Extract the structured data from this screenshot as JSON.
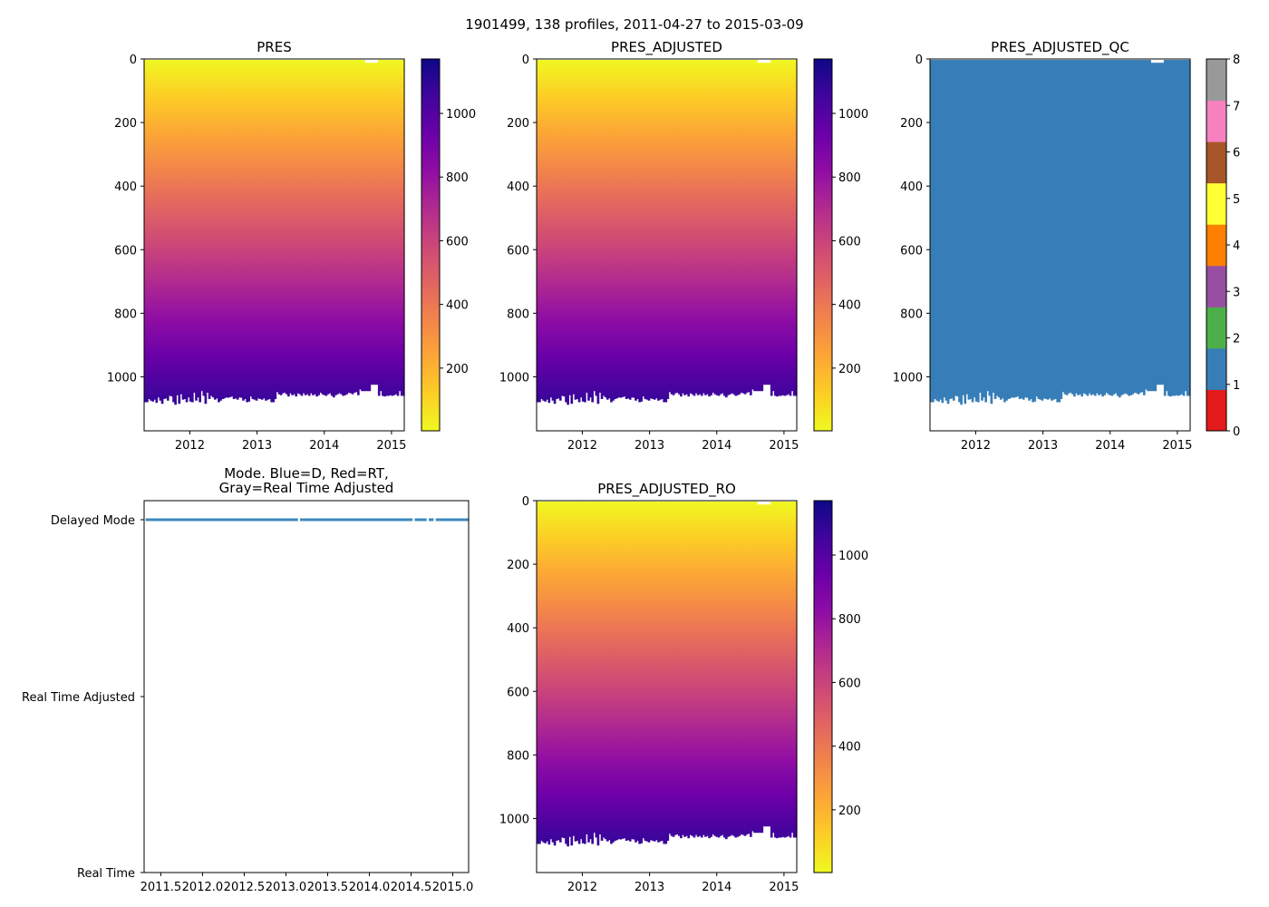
{
  "chart_data": {
    "type": "heatmap",
    "suptitle": "1901499, 138 profiles, 2011-04-27 to 2015-03-09",
    "time_range": [
      2011.32,
      2015.19
    ],
    "depth_range": [
      0,
      1170
    ],
    "min_pressure": 3,
    "profile_max_pressure": [
      1080,
      1080,
      1070,
      1075,
      1078,
      1072,
      1082,
      1065,
      1075,
      1085,
      1070,
      1068,
      1075,
      1060,
      1062,
      1080,
      1088,
      1058,
      1085,
      1055,
      1072,
      1070,
      1080,
      1065,
      1078,
      1080,
      1050,
      1075,
      1065,
      1080,
      1045,
      1060,
      1085,
      1050,
      1070,
      1060,
      1065,
      1072,
      1068,
      1080,
      1075,
      1070,
      1068,
      1065,
      1066,
      1064,
      1062,
      1070,
      1068,
      1072,
      1065,
      1066,
      1075,
      1070,
      1080,
      1078,
      1062,
      1070,
      1072,
      1075,
      1068,
      1070,
      1072,
      1068,
      1075,
      1072,
      1070,
      1080,
      1080,
      1070,
      1048,
      1055,
      1058,
      1052,
      1050,
      1055,
      1062,
      1052,
      1058,
      1055,
      1062,
      1052,
      1055,
      1060,
      1052,
      1058,
      1055,
      1060,
      1052,
      1058,
      1055,
      1062,
      1058,
      1050,
      1055,
      1058,
      1060,
      1055,
      1052,
      1060,
      1065,
      1058,
      1055,
      1052,
      1055,
      1060,
      1058,
      1055,
      1050,
      1052,
      1055,
      1050,
      1048,
      1058,
      1040,
      1045,
      1045,
      1045,
      1045,
      1045,
      1025,
      1025,
      1025,
      1025,
      1060,
      1045,
      1060,
      1062,
      1060,
      1060,
      1058,
      1060,
      1058,
      1055,
      1060,
      1045,
      1060,
      1060
    ],
    "panels": [
      {
        "title": "PRES",
        "colorbar": "plasma",
        "colorbar_ticks": [
          200,
          400,
          600,
          800,
          1000
        ]
      },
      {
        "title": "PRES_ADJUSTED",
        "colorbar": "plasma",
        "colorbar_ticks": [
          200,
          400,
          600,
          800,
          1000
        ]
      },
      {
        "title": "PRES_ADJUSTED_QC",
        "colorbar": "qc",
        "value": 1,
        "colorbar_ticks": [
          0,
          1,
          2,
          3,
          4,
          5,
          6,
          7,
          8
        ]
      },
      {
        "title": "PRES_ADJUSTED_RO",
        "colorbar": "plasma",
        "colorbar_ticks": [
          200,
          400,
          600,
          800,
          1000
        ]
      }
    ],
    "y_ticks": [
      0,
      200,
      400,
      600,
      800,
      1000
    ],
    "x_ticks": [
      2012,
      2013,
      2014,
      2015
    ],
    "qc_colors": [
      "#e41a1c",
      "#377eb8",
      "#4daf4a",
      "#984ea3",
      "#ff7f00",
      "#ffff33",
      "#a65628",
      "#f781bf",
      "#999999"
    ],
    "mode_panel": {
      "title_line1": "Mode. Blue=D, Red=RT,",
      "title_line2": "Gray=Real Time Adjusted",
      "y_labels": [
        "Delayed Mode",
        "Real Time Adjusted",
        "Real Time"
      ],
      "x_ticks": [
        "2011.5",
        "2012.0",
        "2012.5",
        "2013.0",
        "2013.5",
        "2014.0",
        "2014.5",
        "2015.0"
      ],
      "x_tick_values": [
        2011.5,
        2012.0,
        2012.5,
        2013.0,
        2013.5,
        2014.0,
        2014.5,
        2015.0
      ],
      "mode": "Delayed Mode",
      "gap_times": [
        2013.16,
        2014.52,
        2014.7,
        2014.78
      ],
      "marker_color": "#1f77b4"
    }
  }
}
